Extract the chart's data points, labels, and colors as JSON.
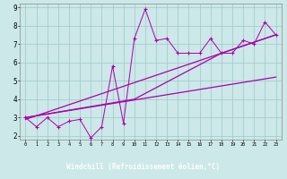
{
  "xlabel": "Windchill (Refroidissement éolien,°C)",
  "xlim": [
    -0.5,
    23.5
  ],
  "ylim": [
    1.8,
    9.2
  ],
  "yticks": [
    2,
    3,
    4,
    5,
    6,
    7,
    8,
    9
  ],
  "xticks": [
    0,
    1,
    2,
    3,
    4,
    5,
    6,
    7,
    8,
    9,
    10,
    11,
    12,
    13,
    14,
    15,
    16,
    17,
    18,
    19,
    20,
    21,
    22,
    23
  ],
  "bg_color": "#cce8e8",
  "grid_color": "#9ec8c8",
  "line_color": "#aa00aa",
  "xlabel_bg": "#6600aa",
  "xlabel_fg": "#ffffff",
  "data_x": [
    0,
    1,
    2,
    3,
    4,
    5,
    6,
    7,
    8,
    9,
    10,
    11,
    12,
    13,
    14,
    15,
    16,
    17,
    18,
    19,
    20,
    21,
    22,
    23
  ],
  "data_y": [
    3.0,
    2.5,
    3.0,
    2.5,
    2.8,
    2.9,
    1.9,
    2.5,
    5.8,
    2.7,
    7.3,
    8.9,
    7.2,
    7.3,
    6.5,
    6.5,
    6.5,
    7.3,
    6.5,
    6.5,
    7.2,
    7.0,
    8.2,
    7.5
  ],
  "line1_x": [
    0,
    23
  ],
  "line1_y": [
    2.9,
    7.5
  ],
  "line2_x": [
    0,
    23
  ],
  "line2_y": [
    3.0,
    5.2
  ],
  "line3_x": [
    0,
    10,
    18,
    23
  ],
  "line3_y": [
    3.0,
    4.0,
    6.5,
    7.5
  ]
}
